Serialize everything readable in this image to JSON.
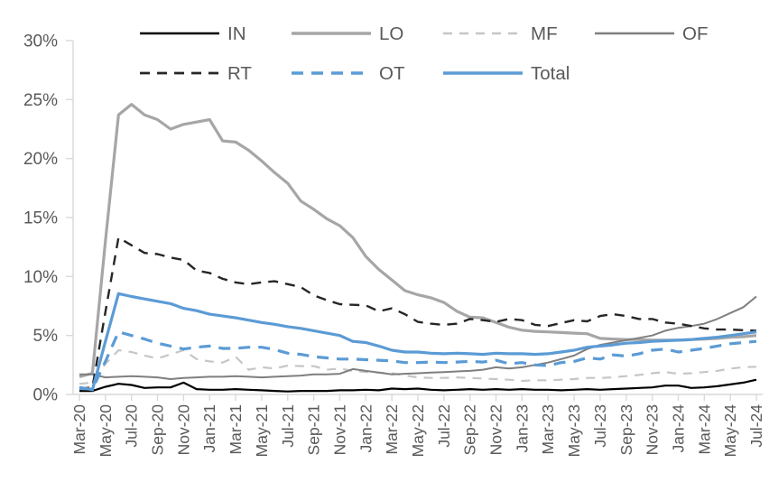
{
  "page": {
    "background": "#ffffff"
  },
  "chart_data": {
    "type": "line",
    "title": "",
    "xlabel": "",
    "ylabel": "",
    "ylim": [
      0,
      30
    ],
    "y_tick_step": 5,
    "y_tick_labels": [
      "0%",
      "5%",
      "10%",
      "15%",
      "20%",
      "25%",
      "30%"
    ],
    "x_tick_every": 2,
    "grid": false,
    "legend_position": "top",
    "legend_rows": [
      [
        "IN",
        "LO",
        "MF",
        "OF"
      ],
      [
        "RT",
        "OT",
        "Total"
      ]
    ],
    "axis_line_color": "#d9d9d9",
    "axis_text_color": "#595959",
    "x": [
      "Mar-20",
      "Apr-20",
      "May-20",
      "Jun-20",
      "Jul-20",
      "Aug-20",
      "Sep-20",
      "Oct-20",
      "Nov-20",
      "Dec-20",
      "Jan-21",
      "Feb-21",
      "Mar-21",
      "Apr-21",
      "May-21",
      "Jun-21",
      "Jul-21",
      "Aug-21",
      "Sep-21",
      "Oct-21",
      "Nov-21",
      "Dec-21",
      "Jan-22",
      "Feb-22",
      "Mar-22",
      "Apr-22",
      "May-22",
      "Jun-22",
      "Jul-22",
      "Aug-22",
      "Sep-22",
      "Oct-22",
      "Nov-22",
      "Dec-22",
      "Jan-23",
      "Feb-23",
      "Mar-23",
      "Apr-23",
      "May-23",
      "Jun-23",
      "Jul-23",
      "Aug-23",
      "Sep-23",
      "Oct-23",
      "Nov-23",
      "Dec-23",
      "Jan-24",
      "Feb-24",
      "Mar-24",
      "Apr-24",
      "May-24",
      "Jun-24",
      "Jul-24"
    ],
    "series": [
      {
        "name": "IN",
        "color": "#000000",
        "dash": "solid",
        "dasharray": "none",
        "width": 2.2,
        "values": [
          0.3,
          0.3,
          0.65,
          0.9,
          0.8,
          0.55,
          0.6,
          0.6,
          1.0,
          0.45,
          0.4,
          0.4,
          0.45,
          0.4,
          0.35,
          0.3,
          0.25,
          0.3,
          0.3,
          0.3,
          0.35,
          0.35,
          0.4,
          0.35,
          0.5,
          0.45,
          0.5,
          0.4,
          0.35,
          0.4,
          0.45,
          0.4,
          0.45,
          0.4,
          0.45,
          0.4,
          0.4,
          0.35,
          0.4,
          0.45,
          0.4,
          0.45,
          0.5,
          0.55,
          0.6,
          0.75,
          0.75,
          0.55,
          0.6,
          0.7,
          0.85,
          1.0,
          1.25
        ]
      },
      {
        "name": "LO",
        "color": "#a6a6a6",
        "dash": "solid",
        "dasharray": "none",
        "width": 3.2,
        "values": [
          1.5,
          1.8,
          13.0,
          23.7,
          24.6,
          23.7,
          23.3,
          22.5,
          22.9,
          23.1,
          23.3,
          21.5,
          21.4,
          20.7,
          19.8,
          18.8,
          17.9,
          16.4,
          15.7,
          14.9,
          14.3,
          13.3,
          11.7,
          10.6,
          9.7,
          8.8,
          8.45,
          8.2,
          7.8,
          7.05,
          6.55,
          6.5,
          6.1,
          5.7,
          5.45,
          5.35,
          5.3,
          5.25,
          5.2,
          5.15,
          4.75,
          4.7,
          4.65,
          4.65,
          4.6,
          4.6,
          4.6,
          4.65,
          4.7,
          4.75,
          4.85,
          4.9,
          5.0
        ]
      },
      {
        "name": "MF",
        "color": "#c6c6c6",
        "dash": "dashed",
        "dasharray": "10,8",
        "width": 2.2,
        "values": [
          0.9,
          1.0,
          2.6,
          3.75,
          3.6,
          3.3,
          3.05,
          3.4,
          3.75,
          3.0,
          2.8,
          2.7,
          3.2,
          2.1,
          2.3,
          2.2,
          2.45,
          2.4,
          2.4,
          2.1,
          2.2,
          2.0,
          1.9,
          1.85,
          1.8,
          1.6,
          1.45,
          1.4,
          1.4,
          1.45,
          1.4,
          1.35,
          1.3,
          1.25,
          1.15,
          1.2,
          1.2,
          1.25,
          1.3,
          1.4,
          1.4,
          1.45,
          1.55,
          1.65,
          1.8,
          1.9,
          1.75,
          1.8,
          1.9,
          2.0,
          2.2,
          2.3,
          2.35
        ]
      },
      {
        "name": "OF",
        "color": "#7f7f7f",
        "dash": "solid",
        "dasharray": "none",
        "width": 2.0,
        "values": [
          1.7,
          1.7,
          1.45,
          1.5,
          1.55,
          1.5,
          1.45,
          1.3,
          1.4,
          1.45,
          1.5,
          1.5,
          1.55,
          1.5,
          1.45,
          1.5,
          1.55,
          1.6,
          1.7,
          1.7,
          1.75,
          2.15,
          2.0,
          1.85,
          1.7,
          1.75,
          1.8,
          1.85,
          1.9,
          1.95,
          2.0,
          2.1,
          2.3,
          2.2,
          2.3,
          2.5,
          2.7,
          3.0,
          3.3,
          3.85,
          4.2,
          4.4,
          4.6,
          4.8,
          5.0,
          5.4,
          5.65,
          5.8,
          6.0,
          6.4,
          6.9,
          7.4,
          8.3
        ]
      },
      {
        "name": "RT",
        "color": "#262626",
        "dash": "dashed",
        "dasharray": "11,8",
        "width": 2.4,
        "values": [
          0.5,
          0.6,
          7.0,
          13.3,
          12.65,
          12.0,
          11.9,
          11.6,
          11.4,
          10.5,
          10.3,
          9.8,
          9.5,
          9.35,
          9.5,
          9.6,
          9.35,
          9.1,
          8.4,
          8.0,
          7.65,
          7.6,
          7.55,
          7.05,
          7.3,
          6.8,
          6.15,
          6.0,
          5.9,
          6.0,
          6.4,
          6.3,
          6.15,
          6.4,
          6.3,
          5.9,
          5.8,
          6.05,
          6.3,
          6.2,
          6.65,
          6.8,
          6.65,
          6.4,
          6.4,
          6.1,
          6.0,
          5.8,
          5.6,
          5.5,
          5.5,
          5.45,
          5.4
        ]
      },
      {
        "name": "OT",
        "color": "#5b9bd5",
        "dash": "dashed",
        "dasharray": "13,9",
        "width": 3.2,
        "values": [
          0.5,
          0.45,
          2.8,
          5.3,
          5.0,
          4.7,
          4.35,
          4.1,
          3.85,
          4.0,
          4.1,
          3.9,
          3.9,
          4.0,
          4.0,
          3.8,
          3.5,
          3.4,
          3.2,
          3.1,
          3.0,
          3.0,
          2.95,
          2.9,
          2.85,
          2.7,
          2.7,
          2.75,
          2.7,
          2.75,
          2.8,
          2.75,
          2.9,
          2.6,
          2.7,
          2.5,
          2.45,
          2.7,
          2.8,
          3.1,
          3.0,
          3.35,
          3.25,
          3.45,
          3.75,
          3.85,
          3.6,
          3.75,
          3.9,
          4.1,
          4.3,
          4.4,
          4.5
        ]
      },
      {
        "name": "Total",
        "color": "#5b9bd5",
        "dash": "solid",
        "dasharray": "none",
        "width": 3.2,
        "values": [
          0.6,
          0.4,
          4.5,
          8.55,
          8.3,
          8.1,
          7.9,
          7.7,
          7.3,
          7.1,
          6.8,
          6.65,
          6.5,
          6.3,
          6.1,
          5.95,
          5.75,
          5.6,
          5.4,
          5.2,
          5.0,
          4.5,
          4.4,
          4.1,
          3.75,
          3.6,
          3.6,
          3.5,
          3.45,
          3.5,
          3.45,
          3.4,
          3.5,
          3.45,
          3.45,
          3.4,
          3.45,
          3.6,
          3.75,
          4.0,
          4.1,
          4.2,
          4.35,
          4.4,
          4.5,
          4.55,
          4.6,
          4.65,
          4.75,
          4.85,
          5.0,
          5.15,
          5.3
        ]
      }
    ]
  }
}
